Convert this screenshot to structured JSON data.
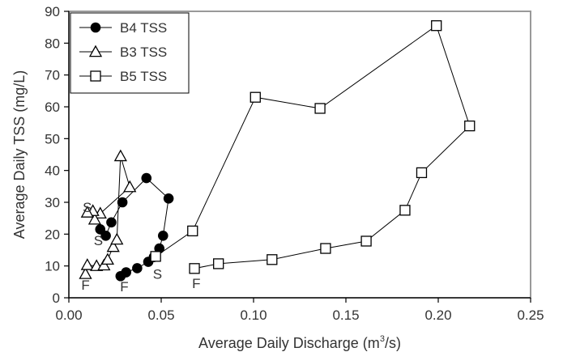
{
  "chart_data": {
    "type": "line",
    "xlabel_main": "Average Daily Discharge (m",
    "xlabel_sup": "3",
    "xlabel_tail": "/s)",
    "ylabel": "Average Daily TSS (mg/L)",
    "xlim": [
      0,
      0.25
    ],
    "ylim": [
      0,
      90
    ],
    "xticks": [
      0,
      0.05,
      0.1,
      0.15,
      0.2,
      0.25
    ],
    "xtick_labels": [
      "0.00",
      "0.05",
      "0.10",
      "0.15",
      "0.20",
      "0.25"
    ],
    "yticks": [
      0,
      10,
      20,
      30,
      40,
      50,
      60,
      70,
      80,
      90
    ],
    "ytick_labels": [
      "0",
      "10",
      "20",
      "30",
      "40",
      "50",
      "60",
      "70",
      "80",
      "90"
    ],
    "grid": false,
    "legend_position": "top-left",
    "series": [
      {
        "name": "B4 TSS",
        "marker": "circle",
        "points": [
          [
            0.028,
            6.8
          ],
          [
            0.031,
            8.0
          ],
          [
            0.037,
            9.3
          ],
          [
            0.043,
            11.3
          ],
          [
            0.046,
            12.8
          ],
          [
            0.049,
            15.5
          ],
          [
            0.051,
            19.5
          ],
          [
            0.054,
            31.2
          ],
          [
            0.042,
            37.6
          ],
          [
            0.029,
            30.0
          ],
          [
            0.023,
            23.7
          ],
          [
            0.02,
            19.5
          ],
          [
            0.017,
            21.5
          ]
        ]
      },
      {
        "name": "B3 TSS",
        "marker": "triangle",
        "points": [
          [
            0.009,
            7.5
          ],
          [
            0.01,
            10.3
          ],
          [
            0.015,
            10.0
          ],
          [
            0.019,
            10.2
          ],
          [
            0.021,
            12.0
          ],
          [
            0.024,
            16.0
          ],
          [
            0.026,
            18.3
          ],
          [
            0.028,
            44.5
          ],
          [
            0.033,
            34.8
          ],
          [
            0.017,
            26.5
          ],
          [
            0.014,
            24.6
          ],
          [
            0.013,
            27.3
          ],
          [
            0.01,
            26.8
          ]
        ]
      },
      {
        "name": "B5 TSS",
        "marker": "square",
        "points": [
          [
            0.068,
            9.2
          ],
          [
            0.081,
            10.7
          ],
          [
            0.11,
            12.0
          ],
          [
            0.139,
            15.5
          ],
          [
            0.161,
            17.8
          ],
          [
            0.182,
            27.5
          ],
          [
            0.191,
            39.3
          ],
          [
            0.217,
            54.0
          ],
          [
            0.199,
            85.5
          ],
          [
            0.136,
            59.5
          ],
          [
            0.101,
            63.0
          ],
          [
            0.067,
            21.0
          ],
          [
            0.047,
            13.0
          ]
        ]
      }
    ],
    "annotations": [
      {
        "text": "S",
        "x": 0.01,
        "y": 27.0
      },
      {
        "text": "S",
        "x": 0.016,
        "y": 16.5
      },
      {
        "text": "S",
        "x": 0.048,
        "y": 6.0
      },
      {
        "text": "F",
        "x": 0.009,
        "y": 2.5
      },
      {
        "text": "F",
        "x": 0.03,
        "y": 2.0
      },
      {
        "text": "F",
        "x": 0.069,
        "y": 3.0
      }
    ]
  }
}
